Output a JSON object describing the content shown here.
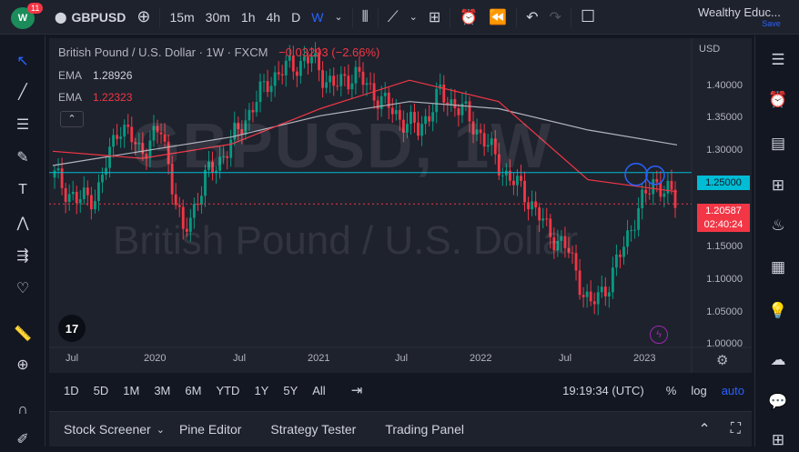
{
  "topbar": {
    "badge": "11",
    "symbol": "GBPUSD",
    "intervals": [
      "15m",
      "30m",
      "1h",
      "4h",
      "D",
      "W"
    ],
    "active_interval": "W",
    "account_name": "Wealthy Educ...",
    "save_label": "Save"
  },
  "legend": {
    "title": "British Pound / U.S. Dollar · 1W · FXCM",
    "change": "−0.03293 (−2.66%)",
    "ema1_label": "EMA",
    "ema1_value": "1.28926",
    "ema2_label": "EMA",
    "ema2_value": "1.22323"
  },
  "watermark": {
    "symbol": "GBPUSD, 1W",
    "name": "British Pound / U.S. Dollar"
  },
  "price_scale": {
    "currency": "USD",
    "ticks": [
      "1.40000",
      "1.35000",
      "1.30000",
      "1.25000",
      "1.20587",
      "1.15000",
      "1.10000",
      "1.05000",
      "1.00000"
    ],
    "level_label": "1.25000",
    "last_price": "1.20587",
    "countdown": "02:40:24"
  },
  "time_scale": {
    "labels": [
      "Jul",
      "2020",
      "Jul",
      "2021",
      "Jul",
      "2022",
      "Jul",
      "2023"
    ]
  },
  "ranges": [
    "1D",
    "5D",
    "1M",
    "3M",
    "6M",
    "YTD",
    "1Y",
    "5Y",
    "All"
  ],
  "clock": "19:19:34 (UTC)",
  "scale_options": {
    "percent": "%",
    "log": "log",
    "auto": "auto"
  },
  "panels": [
    "Stock Screener",
    "Pine Editor",
    "Strategy Tester",
    "Trading Panel"
  ],
  "colors": {
    "up": "#089981",
    "down": "#f23645",
    "level": "#00bcd4",
    "ema_slow": "#b2b5be",
    "ema_fast": "#f23645",
    "accent": "#2962ff"
  },
  "chart_data": {
    "type": "candlestick",
    "title": "British Pound / U.S. Dollar · 1W · FXCM",
    "ylim": [
      1.0,
      1.42
    ],
    "x": [
      "2019-Jul",
      "2020",
      "2020-Jul",
      "2021",
      "2021-Jul",
      "2022",
      "2022-Jul",
      "2023"
    ],
    "close_approx": [
      1.24,
      1.32,
      1.3,
      1.36,
      1.38,
      1.35,
      1.19,
      1.21
    ],
    "series": [
      {
        "name": "EMA",
        "values": [
          1.26,
          1.28,
          1.3,
          1.33,
          1.35,
          1.34,
          1.31,
          1.289
        ]
      },
      {
        "name": "EMA",
        "values": [
          1.28,
          1.27,
          1.29,
          1.34,
          1.38,
          1.35,
          1.24,
          1.223
        ]
      }
    ],
    "horizontal_line": 1.25,
    "last_price": 1.20587,
    "grid": false
  }
}
